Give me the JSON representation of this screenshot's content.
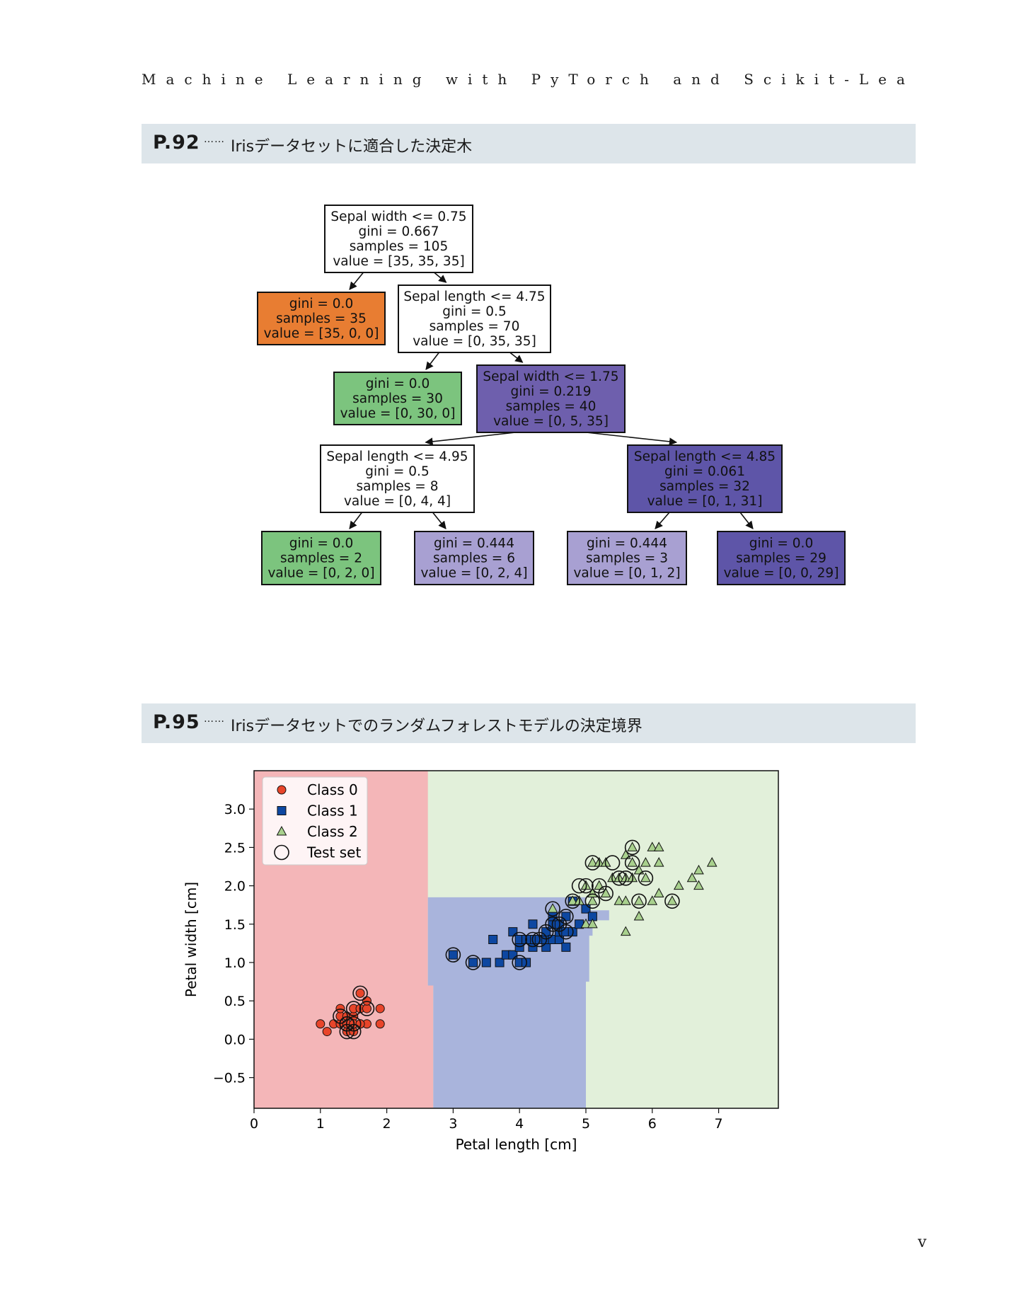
{
  "running_head": "Machine Learning with PyTorch and Scikit-Learn",
  "sections": [
    {
      "num": "P.92",
      "dots": "……",
      "title": "Irisデータセットに適合した決定木"
    },
    {
      "num": "P.95",
      "dots": "……",
      "title": "Irisデータセットでのランダムフォレストモデルの決定境界"
    }
  ],
  "tree": {
    "nodes": [
      {
        "id": "n0",
        "lines": [
          "Sepal width <= 0.75",
          "gini = 0.667",
          "samples = 105",
          "value = [35, 35, 35]"
        ],
        "fill": "#ffffff"
      },
      {
        "id": "n1",
        "lines": [
          "gini = 0.0",
          "samples = 35",
          "value = [35, 0, 0]"
        ],
        "fill": "#e87d32"
      },
      {
        "id": "n2",
        "lines": [
          "Sepal length <= 4.75",
          "gini = 0.5",
          "samples = 70",
          "value = [0, 35, 35]"
        ],
        "fill": "#ffffff"
      },
      {
        "id": "n3",
        "lines": [
          "gini = 0.0",
          "samples = 30",
          "value = [0, 30, 0]"
        ],
        "fill": "#7cc47e"
      },
      {
        "id": "n4",
        "lines": [
          "Sepal width <= 1.75",
          "gini = 0.219",
          "samples = 40",
          "value = [0, 5, 35]"
        ],
        "fill": "#6e5fad"
      },
      {
        "id": "n5",
        "lines": [
          "Sepal length <= 4.95",
          "gini = 0.5",
          "samples = 8",
          "value = [0, 4, 4]"
        ],
        "fill": "#ffffff"
      },
      {
        "id": "n6",
        "lines": [
          "Sepal length <= 4.85",
          "gini = 0.061",
          "samples = 32",
          "value = [0, 1, 31]"
        ],
        "fill": "#5e55a8"
      },
      {
        "id": "n7",
        "lines": [
          "gini = 0.0",
          "samples = 2",
          "value = [0, 2, 0]"
        ],
        "fill": "#7cc47e"
      },
      {
        "id": "n8",
        "lines": [
          "gini = 0.444",
          "samples = 6",
          "value = [0, 2, 4]"
        ],
        "fill": "#a8a0d2"
      },
      {
        "id": "n9",
        "lines": [
          "gini = 0.444",
          "samples = 3",
          "value = [0, 1, 2]"
        ],
        "fill": "#a8a0d2"
      },
      {
        "id": "n10",
        "lines": [
          "gini = 0.0",
          "samples = 29",
          "value = [0, 0, 29]"
        ],
        "fill": "#5e55a8"
      }
    ],
    "edges": [
      [
        "n0",
        "n1"
      ],
      [
        "n0",
        "n2"
      ],
      [
        "n2",
        "n3"
      ],
      [
        "n2",
        "n4"
      ],
      [
        "n4",
        "n5"
      ],
      [
        "n4",
        "n6"
      ],
      [
        "n5",
        "n7"
      ],
      [
        "n5",
        "n8"
      ],
      [
        "n6",
        "n9"
      ],
      [
        "n6",
        "n10"
      ]
    ]
  },
  "chart_data": {
    "type": "scatter",
    "xlabel": "Petal length [cm]",
    "ylabel": "Petal width [cm]",
    "xlim": [
      0,
      7.9
    ],
    "ylim": [
      -0.9,
      3.5
    ],
    "xticks": [
      0,
      1,
      2,
      3,
      4,
      5,
      6,
      7
    ],
    "yticks": [
      -0.5,
      0.0,
      0.5,
      1.0,
      1.5,
      2.0,
      2.5,
      3.0
    ],
    "ytick_labels": [
      "−0.5",
      "0.0",
      "0.5",
      "1.0",
      "1.5",
      "2.0",
      "2.5",
      "3.0"
    ],
    "legend_position": "top-left",
    "legend": [
      "Class 0",
      "Class 1",
      "Class 2",
      "Test set"
    ],
    "colors": {
      "class0": "#e8452a",
      "class1": "#0d47a1",
      "class2": "#a8d08d",
      "region0": "#f4b6b8",
      "region1": "#a9b4dc",
      "region2": "#e2f0da"
    },
    "regions": [
      {
        "class": 0,
        "polygon": [
          [
            0,
            -0.9
          ],
          [
            2.7,
            -0.9
          ],
          [
            2.7,
            0.7
          ],
          [
            2.62,
            0.7
          ],
          [
            2.62,
            3.5
          ],
          [
            0,
            3.5
          ]
        ]
      },
      {
        "class": 1,
        "polygon": [
          [
            2.7,
            -0.9
          ],
          [
            5.0,
            -0.9
          ],
          [
            5.0,
            0.75
          ],
          [
            5.05,
            0.75
          ],
          [
            5.05,
            1.35
          ],
          [
            5.1,
            1.35
          ],
          [
            5.1,
            1.55
          ],
          [
            5.35,
            1.55
          ],
          [
            5.35,
            1.68
          ],
          [
            5.0,
            1.68
          ],
          [
            5.0,
            1.85
          ],
          [
            2.62,
            1.85
          ],
          [
            2.62,
            0.7
          ],
          [
            2.7,
            0.7
          ]
        ]
      }
    ],
    "series": [
      {
        "name": "Class 0",
        "marker": "circle",
        "points": [
          [
            1.0,
            0.2
          ],
          [
            1.1,
            0.1
          ],
          [
            1.2,
            0.2
          ],
          [
            1.3,
            0.2
          ],
          [
            1.3,
            0.3
          ],
          [
            1.3,
            0.4
          ],
          [
            1.4,
            0.1
          ],
          [
            1.4,
            0.2
          ],
          [
            1.4,
            0.3
          ],
          [
            1.5,
            0.1
          ],
          [
            1.5,
            0.2
          ],
          [
            1.5,
            0.3
          ],
          [
            1.5,
            0.4
          ],
          [
            1.6,
            0.2
          ],
          [
            1.6,
            0.4
          ],
          [
            1.6,
            0.6
          ],
          [
            1.7,
            0.2
          ],
          [
            1.7,
            0.4
          ],
          [
            1.7,
            0.5
          ],
          [
            1.9,
            0.2
          ],
          [
            1.9,
            0.4
          ],
          [
            1.4,
            0.2
          ],
          [
            1.5,
            0.2
          ],
          [
            1.6,
            0.2
          ]
        ]
      },
      {
        "name": "Class 1",
        "marker": "square",
        "points": [
          [
            3.0,
            1.1
          ],
          [
            3.3,
            1.0
          ],
          [
            3.5,
            1.0
          ],
          [
            3.6,
            1.3
          ],
          [
            3.7,
            1.0
          ],
          [
            3.8,
            1.1
          ],
          [
            3.9,
            1.1
          ],
          [
            3.9,
            1.4
          ],
          [
            4.0,
            1.0
          ],
          [
            4.0,
            1.2
          ],
          [
            4.0,
            1.3
          ],
          [
            4.1,
            1.0
          ],
          [
            4.1,
            1.3
          ],
          [
            4.2,
            1.2
          ],
          [
            4.2,
            1.3
          ],
          [
            4.2,
            1.5
          ],
          [
            4.3,
            1.3
          ],
          [
            4.4,
            1.2
          ],
          [
            4.4,
            1.3
          ],
          [
            4.4,
            1.4
          ],
          [
            4.5,
            1.3
          ],
          [
            4.5,
            1.5
          ],
          [
            4.6,
            1.3
          ],
          [
            4.6,
            1.4
          ],
          [
            4.6,
            1.5
          ],
          [
            4.7,
            1.2
          ],
          [
            4.7,
            1.4
          ],
          [
            4.7,
            1.6
          ],
          [
            4.8,
            1.4
          ],
          [
            4.8,
            1.8
          ],
          [
            4.9,
            1.5
          ],
          [
            5.0,
            1.7
          ],
          [
            5.1,
            1.6
          ],
          [
            4.5,
            1.6
          ],
          [
            4.1,
            1.3
          ]
        ]
      },
      {
        "name": "Class 2",
        "marker": "triangle",
        "points": [
          [
            4.5,
            1.7
          ],
          [
            4.8,
            1.8
          ],
          [
            4.9,
            1.8
          ],
          [
            5.0,
            1.5
          ],
          [
            5.0,
            2.0
          ],
          [
            5.1,
            1.5
          ],
          [
            5.1,
            1.8
          ],
          [
            5.1,
            1.9
          ],
          [
            5.1,
            2.3
          ],
          [
            5.2,
            2.0
          ],
          [
            5.2,
            2.3
          ],
          [
            5.3,
            1.9
          ],
          [
            5.3,
            2.3
          ],
          [
            5.4,
            2.1
          ],
          [
            5.5,
            1.8
          ],
          [
            5.5,
            2.1
          ],
          [
            5.6,
            1.4
          ],
          [
            5.6,
            1.8
          ],
          [
            5.6,
            2.1
          ],
          [
            5.6,
            2.4
          ],
          [
            5.7,
            2.1
          ],
          [
            5.7,
            2.3
          ],
          [
            5.7,
            2.5
          ],
          [
            5.8,
            1.6
          ],
          [
            5.8,
            1.8
          ],
          [
            5.8,
            2.2
          ],
          [
            5.9,
            2.1
          ],
          [
            5.9,
            2.3
          ],
          [
            6.0,
            1.8
          ],
          [
            6.0,
            2.5
          ],
          [
            6.1,
            1.9
          ],
          [
            6.1,
            2.3
          ],
          [
            6.1,
            2.5
          ],
          [
            6.3,
            1.8
          ],
          [
            6.4,
            2.0
          ],
          [
            6.6,
            2.1
          ],
          [
            6.7,
            2.0
          ],
          [
            6.7,
            2.2
          ],
          [
            6.9,
            2.3
          ]
        ]
      },
      {
        "name": "Test set",
        "marker": "open-circle",
        "points": [
          [
            1.3,
            0.3
          ],
          [
            1.4,
            0.2
          ],
          [
            1.4,
            0.1
          ],
          [
            1.5,
            0.1
          ],
          [
            1.5,
            0.2
          ],
          [
            1.5,
            0.4
          ],
          [
            1.6,
            0.6
          ],
          [
            1.7,
            0.4
          ],
          [
            1.4,
            0.2
          ],
          [
            3.0,
            1.1
          ],
          [
            3.3,
            1.0
          ],
          [
            4.0,
            1.0
          ],
          [
            4.0,
            1.3
          ],
          [
            4.2,
            1.3
          ],
          [
            4.3,
            1.3
          ],
          [
            4.4,
            1.4
          ],
          [
            4.5,
            1.5
          ],
          [
            4.5,
            1.7
          ],
          [
            4.6,
            1.5
          ],
          [
            4.7,
            1.4
          ],
          [
            4.7,
            1.6
          ],
          [
            4.8,
            1.8
          ],
          [
            4.9,
            2.0
          ],
          [
            5.0,
            2.0
          ],
          [
            5.1,
            1.8
          ],
          [
            5.1,
            2.3
          ],
          [
            5.2,
            2.0
          ],
          [
            5.3,
            1.9
          ],
          [
            5.4,
            2.3
          ],
          [
            5.5,
            2.1
          ],
          [
            5.6,
            2.1
          ],
          [
            5.7,
            2.3
          ],
          [
            5.7,
            2.5
          ],
          [
            5.8,
            1.8
          ],
          [
            5.9,
            2.1
          ],
          [
            6.3,
            1.8
          ]
        ]
      }
    ]
  },
  "page_number": "v"
}
